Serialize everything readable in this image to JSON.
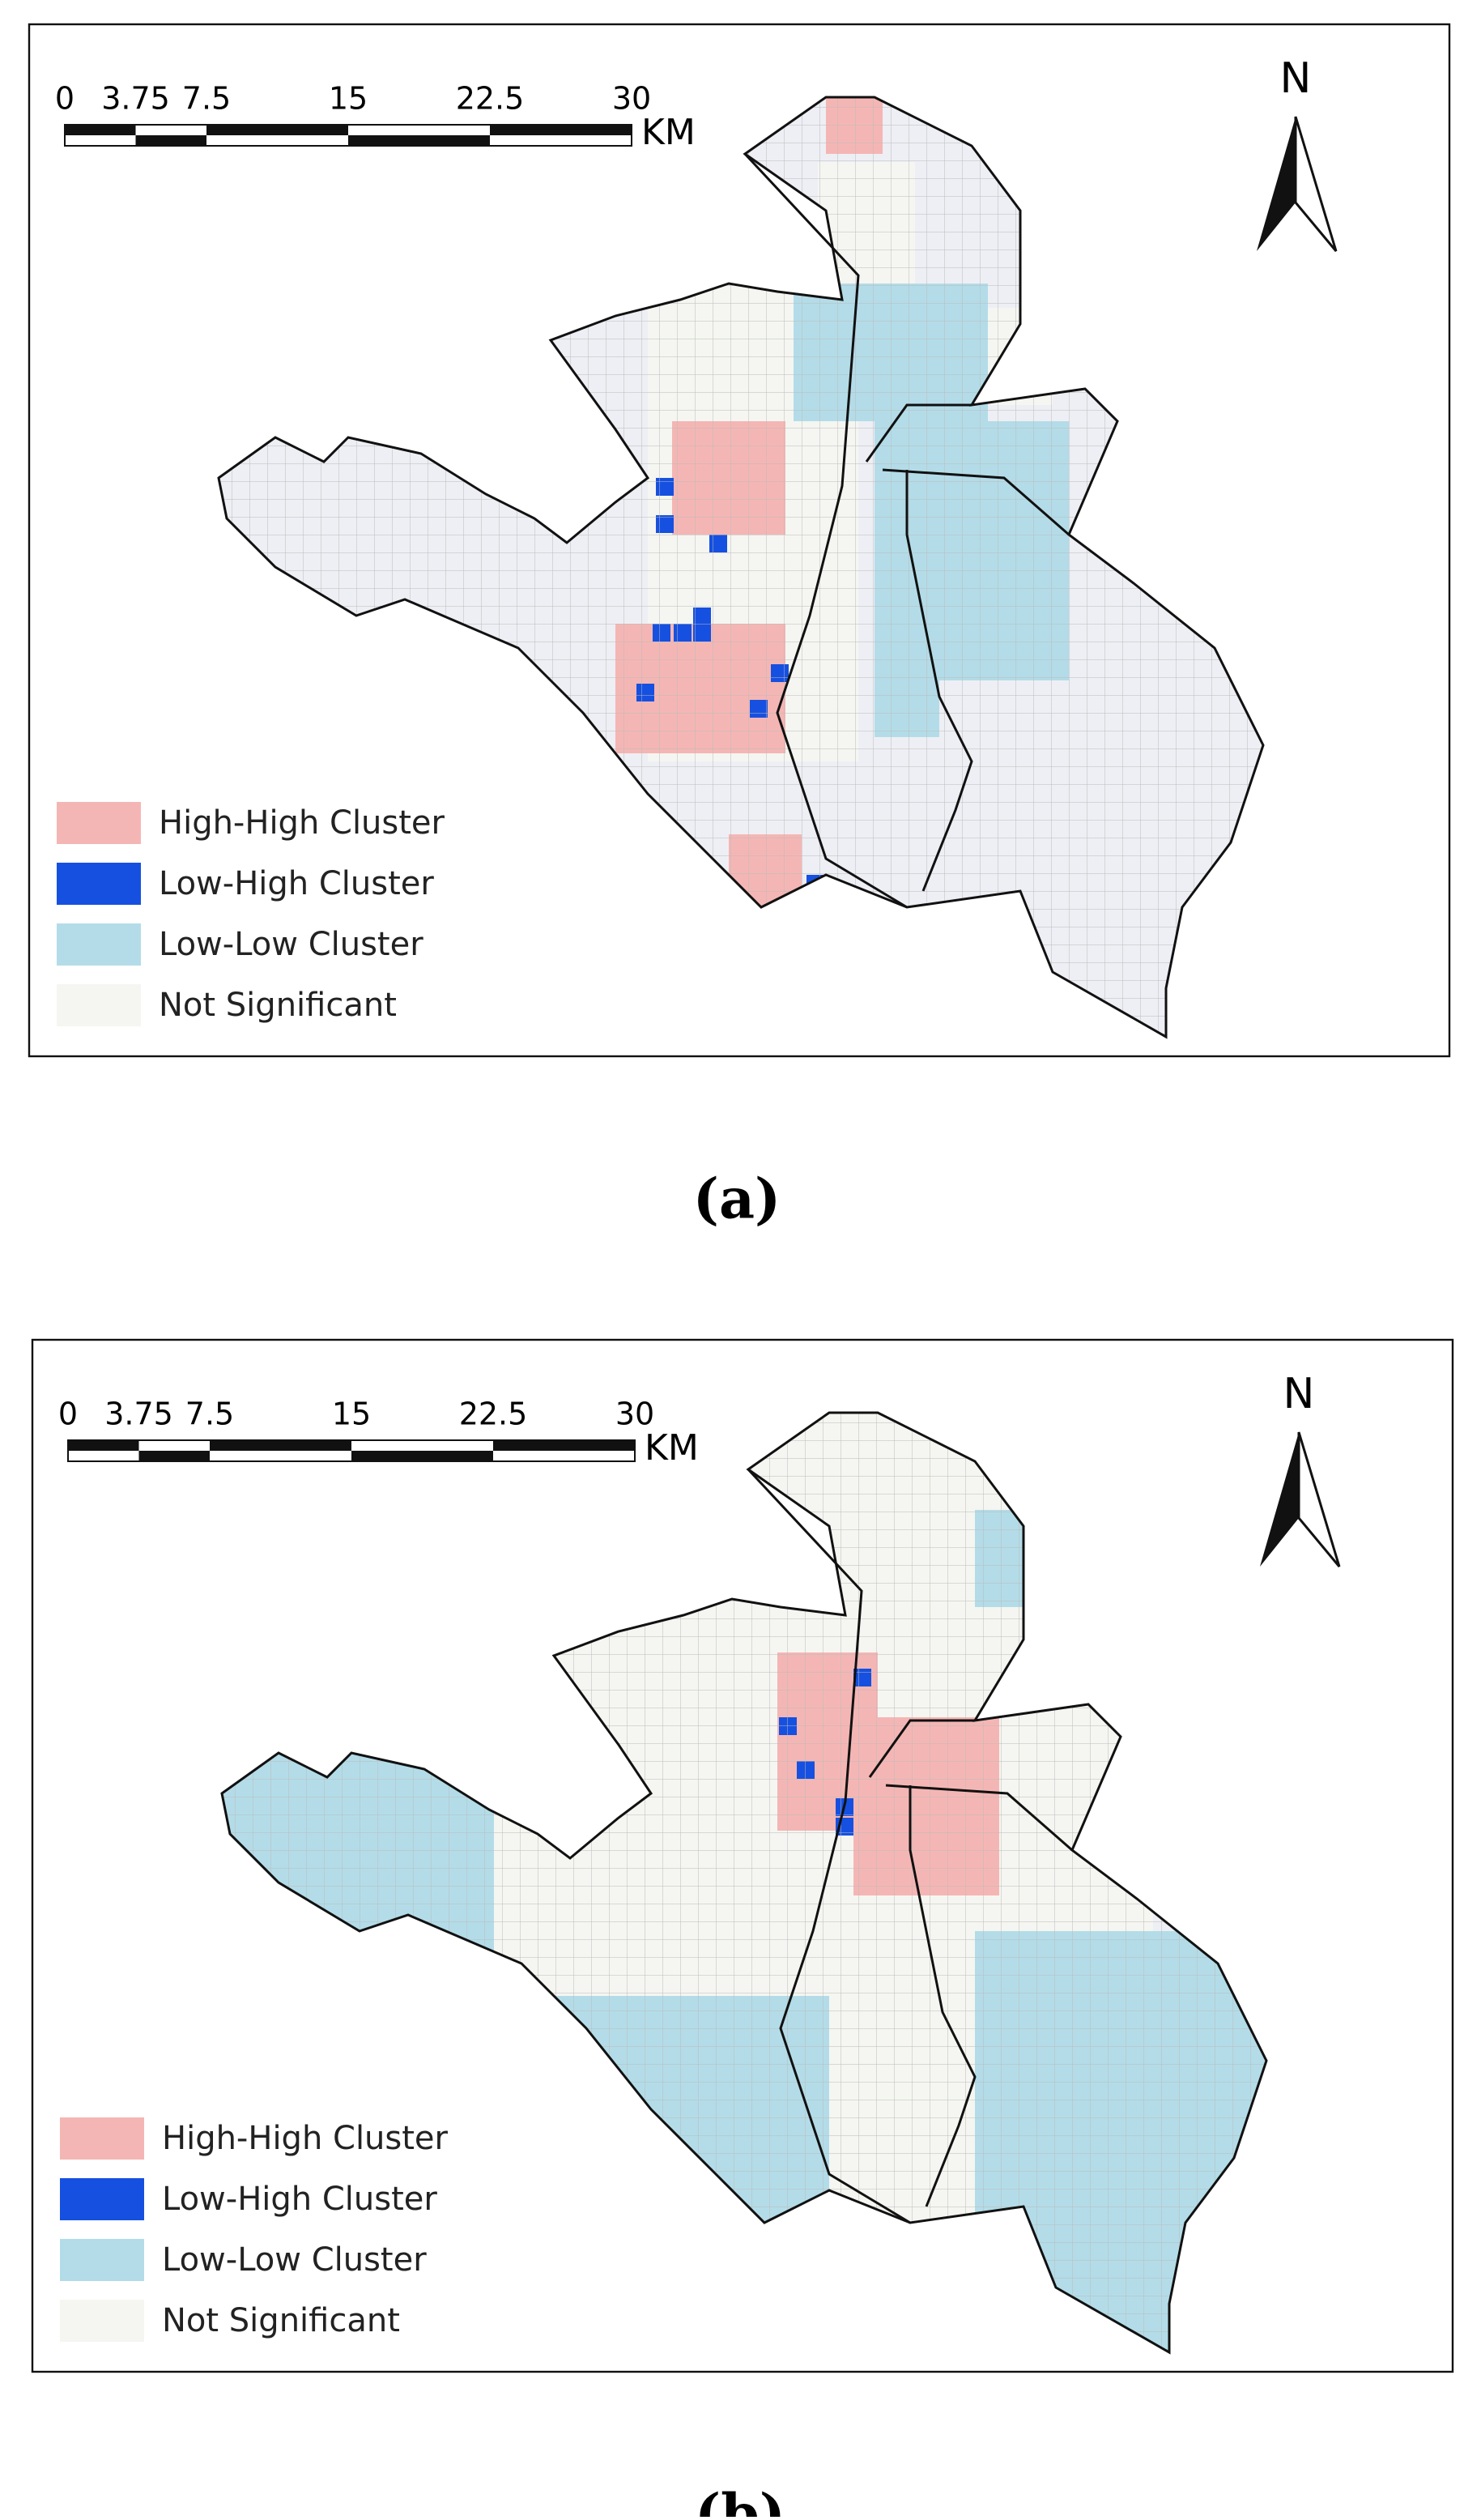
{
  "panels": [
    {
      "scale_ticks": [
        0,
        3.75,
        7.5,
        15,
        22.5,
        30
      ],
      "scale_unit": "KM",
      "north": "N",
      "legend": [
        {
          "label": "High-High Cluster",
          "color": "#f4b6b4"
        },
        {
          "label": "Low-High Cluster",
          "color": "#1650e0"
        },
        {
          "label": "Low-Low Cluster",
          "color": "#b3dce8"
        },
        {
          "label": "Not Significant",
          "color": "#f5f6f1"
        }
      ],
      "caption": "(a)"
    },
    {
      "scale_ticks": [
        0,
        3.75,
        7.5,
        15,
        22.5,
        30
      ],
      "scale_unit": "KM",
      "north": "N",
      "legend": [
        {
          "label": "High-High Cluster",
          "color": "#f4b6b4"
        },
        {
          "label": "Low-High Cluster",
          "color": "#1650e0"
        },
        {
          "label": "Low-Low Cluster",
          "color": "#b3dce8"
        },
        {
          "label": "Not Significant",
          "color": "#f5f6f1"
        }
      ],
      "caption": "(b)"
    }
  ]
}
